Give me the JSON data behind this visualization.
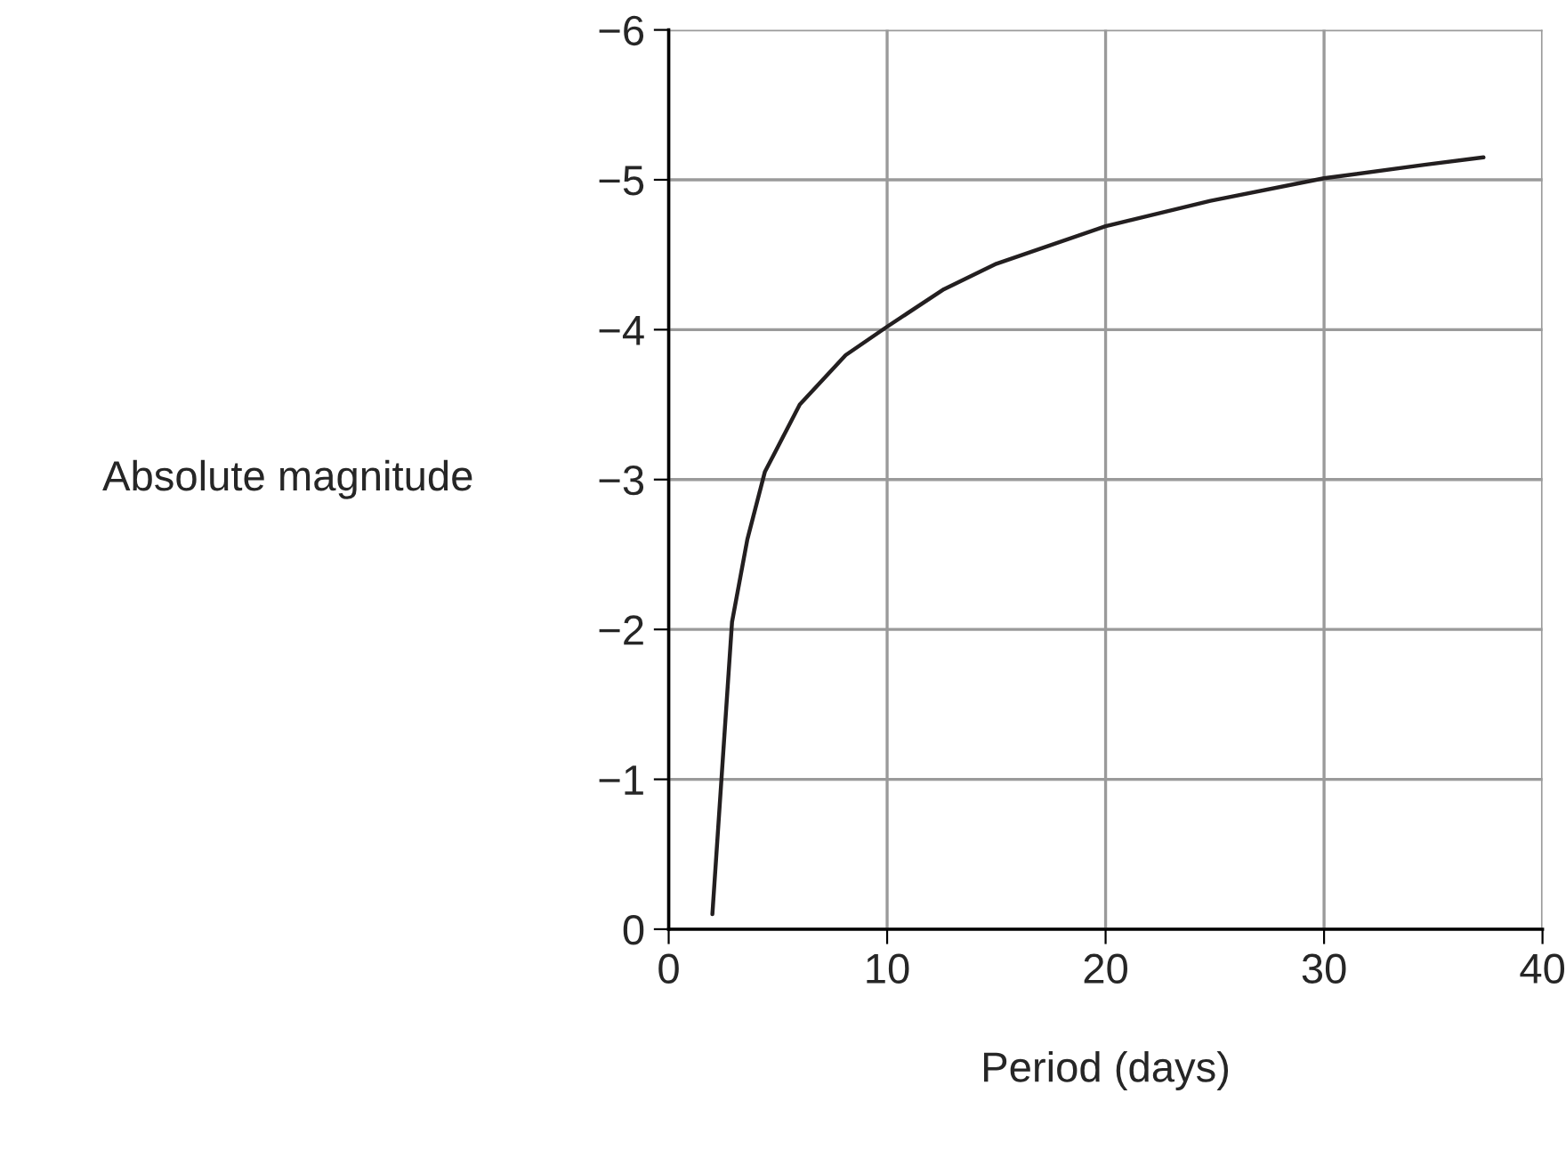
{
  "chart_data": {
    "type": "line",
    "xlabel": "Period (days)",
    "ylabel": "Absolute magnitude",
    "x": [
      2.0,
      2.9,
      3.6,
      4.4,
      6.0,
      8.1,
      10.0,
      12.6,
      15.0,
      20.0,
      24.8,
      30.0,
      34.6,
      37.3
    ],
    "series": [
      {
        "color": "#231f20",
        "values": [
          -0.1,
          -2.05,
          -2.6,
          -3.05,
          -3.5,
          -3.83,
          -4.02,
          -4.27,
          -4.44,
          -4.69,
          -4.86,
          -5.01,
          -5.1,
          -5.15
        ]
      }
    ],
    "xlim": [
      0,
      40
    ],
    "ylim": [
      0,
      -6
    ],
    "xticks": [
      0,
      10,
      20,
      30,
      40
    ],
    "yticks": [
      0,
      {
        "value": -1,
        "label": "−1"
      },
      {
        "value": -2,
        "label": "−2"
      },
      {
        "value": -3,
        "label": "−3"
      },
      {
        "value": -4,
        "label": "−4"
      },
      {
        "value": -5,
        "label": "−5"
      },
      {
        "value": -6,
        "label": "−6"
      }
    ],
    "grid": true,
    "line_style": "solid"
  }
}
